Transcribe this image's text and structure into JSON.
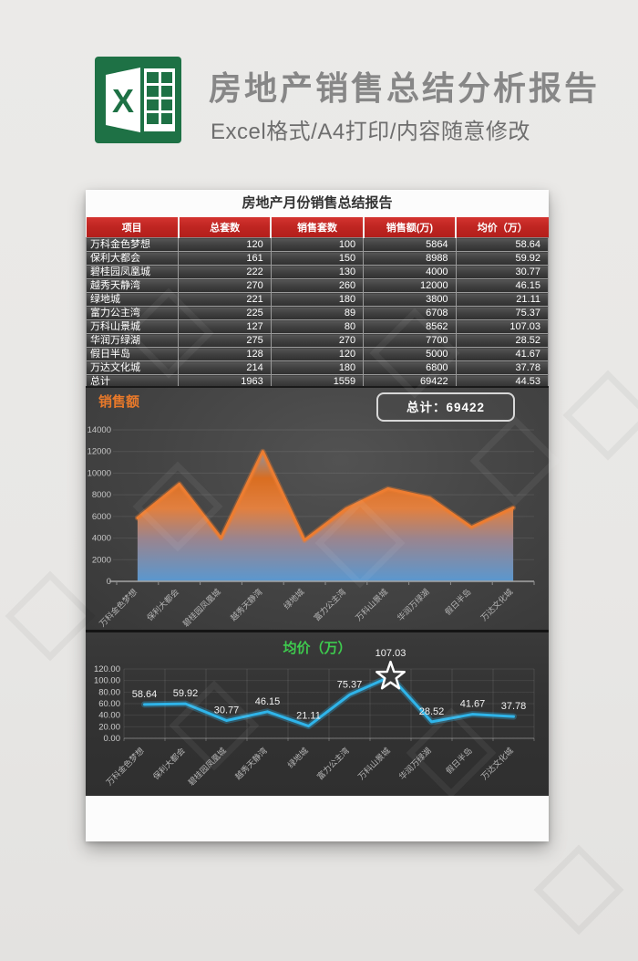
{
  "banner": {
    "title": "房地产销售总结分析报告",
    "subtitle": "Excel格式/A4打印/内容随意修改",
    "logo_icon": "excel-logo",
    "logo_color": "#1e7145",
    "title_color": "#878787"
  },
  "report_title": "房地产月份销售总结报告",
  "table": {
    "headers": [
      "项目",
      "总套数",
      "销售套数",
      "销售额(万)",
      "均价（万）"
    ],
    "header_bg": "#c02622",
    "rows": [
      [
        "万科金色梦想",
        "120",
        "100",
        "5864",
        "58.64"
      ],
      [
        "保利大都会",
        "161",
        "150",
        "8988",
        "59.92"
      ],
      [
        "碧桂园凤凰城",
        "222",
        "130",
        "4000",
        "30.77"
      ],
      [
        "越秀天静湾",
        "270",
        "260",
        "12000",
        "46.15"
      ],
      [
        "绿地城",
        "221",
        "180",
        "3800",
        "21.11"
      ],
      [
        "富力公主湾",
        "225",
        "89",
        "6708",
        "75.37"
      ],
      [
        "万科山景城",
        "127",
        "80",
        "8562",
        "107.03"
      ],
      [
        "华润万绿湖",
        "275",
        "270",
        "7700",
        "28.52"
      ],
      [
        "假日半岛",
        "128",
        "120",
        "5000",
        "41.67"
      ],
      [
        "万达文化城",
        "214",
        "180",
        "6800",
        "37.78"
      ],
      [
        "总计",
        "1963",
        "1559",
        "69422",
        "44.53"
      ]
    ]
  },
  "chart_data": [
    {
      "type": "area",
      "title": "销售额",
      "title_color": "#e8792a",
      "total_badge": "总计：69422",
      "categories": [
        "万科金色梦想",
        "保利大都会",
        "碧桂园凤凰城",
        "越秀天静湾",
        "绿地城",
        "富力公主湾",
        "万科山景城",
        "华润万绿湖",
        "假日半岛",
        "万达文化城"
      ],
      "values": [
        5864,
        8988,
        4000,
        12000,
        3800,
        6708,
        8562,
        7700,
        5000,
        6800
      ],
      "ylim": [
        0,
        14000
      ],
      "ytick_step": 2000,
      "line_color": "#ed7d31",
      "fill_gradient": [
        "#7e93ab",
        "#df6f1f",
        "#e8823f",
        "#9d8792",
        "#5b9bd5"
      ],
      "grid": "horizontal",
      "legend_position": "none",
      "xlabel": "",
      "ylabel": ""
    },
    {
      "type": "line",
      "title": "均价（万）",
      "title_color": "#3ecb4e",
      "categories": [
        "万科金色梦想",
        "保利大都会",
        "碧桂园凤凰城",
        "越秀天静湾",
        "绿地城",
        "富力公主湾",
        "万科山景城",
        "华润万绿湖",
        "假日半岛",
        "万达文化城"
      ],
      "values": [
        58.64,
        59.92,
        30.77,
        46.15,
        21.11,
        75.37,
        107.03,
        28.52,
        41.67,
        37.78
      ],
      "data_labels": [
        "58.64",
        "59.92",
        "30.77",
        "46.15",
        "21.11",
        "75.37",
        "107.03",
        "28.52",
        "41.67",
        "37.78"
      ],
      "ylim": [
        0,
        120
      ],
      "ytick_step": 20,
      "ytick_format": "2dp",
      "line_color": "#2fb4e9",
      "marker": "star-on-max",
      "star_index": 6,
      "grid": "both",
      "legend_position": "none",
      "xlabel": "",
      "ylabel": ""
    }
  ]
}
